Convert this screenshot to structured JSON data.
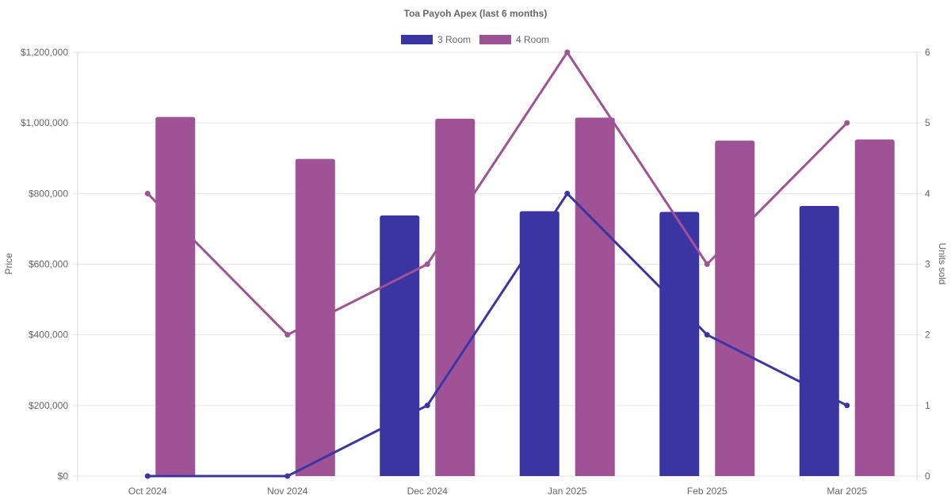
{
  "chart_data": {
    "type": "bar",
    "title": "Toa Payoh Apex (last 6 months)",
    "categories": [
      "Oct 2024",
      "Nov 2024",
      "Dec 2024",
      "Jan 2025",
      "Feb 2025",
      "Mar 2025"
    ],
    "y_axis_left": {
      "label": "Price",
      "min": 0,
      "max": 1200000,
      "ticks": [
        "$0",
        "$200,000",
        "$400,000",
        "$600,000",
        "$800,000",
        "$1,000,000",
        "$1,200,000"
      ]
    },
    "y_axis_right": {
      "label": "Units sold",
      "min": 0,
      "max": 6,
      "ticks": [
        "0",
        "1",
        "2",
        "3",
        "4",
        "5",
        "6"
      ]
    },
    "legend": {
      "placement": "top-center",
      "items": [
        {
          "label": "3 Room",
          "color": "#3b35a3"
        },
        {
          "label": "4 Room",
          "color": "#9f5295"
        }
      ]
    },
    "series": [
      {
        "name": "3 Room",
        "kind": "bar",
        "axis": "left",
        "color": "#3b35a3",
        "values": [
          null,
          null,
          738000,
          750000,
          748000,
          765000
        ]
      },
      {
        "name": "4 Room",
        "kind": "bar",
        "axis": "left",
        "color": "#9f5295",
        "values": [
          1017000,
          898000,
          1012000,
          1015000,
          950000,
          953000
        ]
      },
      {
        "name": "3 Room",
        "kind": "line",
        "axis": "right",
        "color": "#3b35a3",
        "values": [
          0,
          0,
          1,
          4,
          2,
          1
        ]
      },
      {
        "name": "4 Room",
        "kind": "line",
        "axis": "right",
        "color": "#9f5295",
        "values": [
          4,
          2,
          3,
          6,
          3,
          5
        ]
      }
    ],
    "grid": true
  }
}
